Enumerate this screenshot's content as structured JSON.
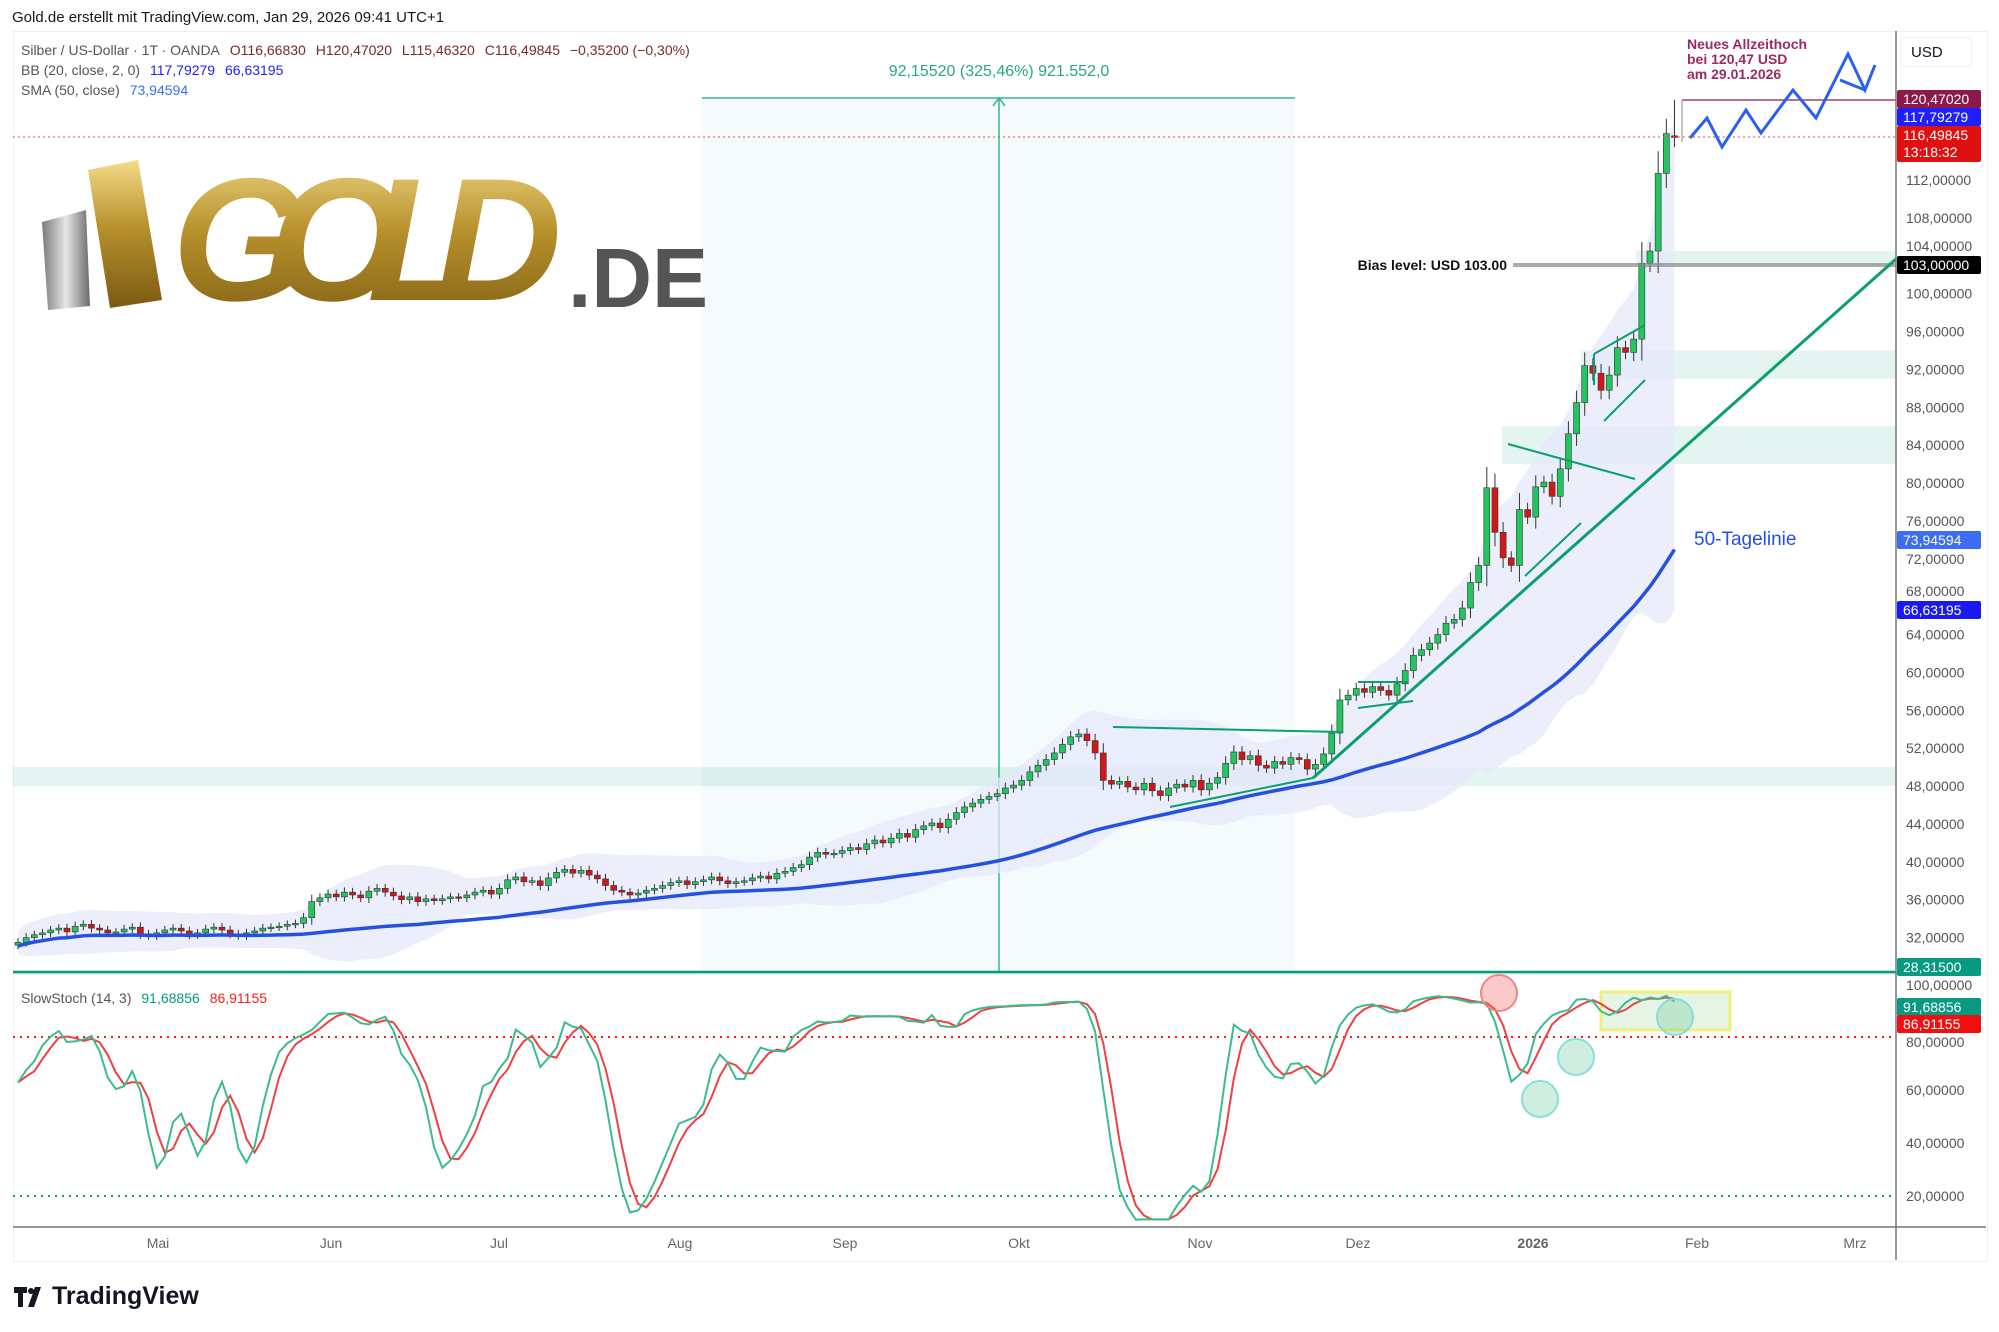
{
  "credit": "Gold.de erstellt mit TradingView.com, Jan 29, 2026 09:41 UTC+1",
  "legend": {
    "symbol": "Silber / US-Dollar · 1T · OANDA",
    "open": "O116,66830",
    "high": "H120,47020",
    "low": "L115,46320",
    "close": "C116,49845",
    "change": "−0,35200 (−0,30%)",
    "bb_label": "BB (20, close, 2, 0)",
    "bb_upper": "117,79279",
    "bb_lower": "66,63195",
    "sma_label": "SMA (50, close)",
    "sma_value": "73,94594",
    "stoch_label": "SlowStoch (14, 3)",
    "stoch_k": "91,68856",
    "stoch_d": "86,91155"
  },
  "currency": "USD",
  "logo": {
    "text": "GOLD",
    "suffix": ".DE"
  },
  "branding": "TradingView",
  "annotations": {
    "measure": "92,15520 (325,46%) 921.552,0",
    "ath_line1": "Neues Allzeithoch",
    "ath_line2": "bei 120,47 USD",
    "ath_line3": "am 29.01.2026",
    "bias": "Bias level: USD 103.00",
    "sma_name": "50-Tagelinie"
  },
  "price_badges": [
    {
      "value": "120,47020",
      "color": "#8b1a4a"
    },
    {
      "value": "117,79279",
      "color": "#1e1eff"
    },
    {
      "value": "116,49845",
      "sub": "13:18:32",
      "color": "#e01010"
    },
    {
      "value": "103,00000",
      "color": "#000000"
    },
    {
      "value": "73,94594",
      "color": "#3d6df2"
    },
    {
      "value": "66,63195",
      "color": "#1a1af0"
    },
    {
      "value": "28,31500",
      "color": "#089981"
    }
  ],
  "stoch_badges": [
    {
      "value": "91,68856",
      "color": "#089981"
    },
    {
      "value": "86,91155",
      "color": "#f01010"
    }
  ],
  "colors": {
    "up": "#22c55e",
    "down": "#d01818",
    "sma": "#2451e0",
    "bb_fill": "#e6e8fb",
    "stoch_k": "#3dbb8f",
    "stoch_d": "#f04040",
    "trend": "#0aa06e"
  },
  "chart_data": {
    "type": "candlestick",
    "title": "Silber / US-Dollar · 1T · OANDA",
    "price_ticks": [
      "112,00000",
      "108,00000",
      "104,00000",
      "100,00000",
      "96,00000",
      "92,00000",
      "88,00000",
      "84,00000",
      "80,00000",
      "76,00000",
      "72,00000",
      "68,00000",
      "64,00000",
      "60,00000",
      "56,00000",
      "52,00000",
      "48,00000",
      "44,00000",
      "40,00000",
      "36,00000",
      "32,00000"
    ],
    "price_tick_values": [
      112,
      108,
      104,
      100,
      96,
      92,
      88,
      84,
      80,
      76,
      72,
      68,
      64,
      60,
      56,
      52,
      48,
      44,
      40,
      36,
      32
    ],
    "stoch_ticks": [
      "100,00000",
      "80,00000",
      "60,00000",
      "40,00000",
      "20,00000"
    ],
    "stoch_tick_values": [
      100,
      80,
      60,
      40,
      20
    ],
    "time_labels": [
      "Mai",
      "Jun",
      "Jul",
      "Aug",
      "Sep",
      "Okt",
      "Nov",
      "Dez",
      "2026",
      "Feb",
      "Mrz"
    ],
    "last_candle": {
      "open": 116.6683,
      "high": 120.4702,
      "low": 115.4632,
      "close": 116.49845
    },
    "levels": {
      "ath": 120.4702,
      "last": 116.49845,
      "bias": 103.0,
      "stoch_upper": 80,
      "stoch_lower": 20,
      "base": 28.315
    },
    "zones": [
      [
        48,
        50
      ],
      [
        91,
        94
      ],
      [
        82,
        86
      ],
      [
        103,
        104.5
      ]
    ],
    "closes": [
      31.5,
      32,
      32.3,
      32.5,
      32.8,
      33,
      32.6,
      33.2,
      33.4,
      33,
      32.8,
      32.5,
      32.6,
      32.9,
      33.1,
      32.4,
      32.2,
      32.5,
      32.8,
      33,
      32.7,
      32.3,
      32.5,
      32.9,
      33.1,
      32.8,
      32.4,
      32.2,
      32.5,
      32.7,
      33,
      33.1,
      33.2,
      33.4,
      33.5,
      34.1,
      35.8,
      36.2,
      36.6,
      36.3,
      36.8,
      36.5,
      36.2,
      36.9,
      37.2,
      36.8,
      36.4,
      36,
      36.3,
      35.8,
      36.1,
      35.9,
      36.1,
      36.3,
      36.2,
      36.5,
      36.8,
      37,
      36.6,
      37.2,
      38.1,
      38.4,
      37.9,
      38,
      37.5,
      38.3,
      38.9,
      39.2,
      38.8,
      39.1,
      38.6,
      38.2,
      37.5,
      37,
      36.8,
      36.5,
      36.7,
      37,
      37.2,
      37.5,
      37.8,
      38,
      37.6,
      37.9,
      38.1,
      38.4,
      38,
      37.7,
      37.9,
      38,
      38.3,
      38.5,
      38.2,
      38.8,
      39,
      39.4,
      39.7,
      40.5,
      41,
      40.8,
      40.9,
      41.2,
      41.5,
      41.3,
      41.9,
      42.3,
      42,
      42.5,
      43,
      42.6,
      43.4,
      43.8,
      44.1,
      43.6,
      44.5,
      45.2,
      45.8,
      46.2,
      46.6,
      46.9,
      47.2,
      47.8,
      48.1,
      48.6,
      49.5,
      50.2,
      50.8,
      51.5,
      52.4,
      53.2,
      53.5,
      52.8,
      51.5,
      48.6,
      48.2,
      48.5,
      47.9,
      47.6,
      48.3,
      47.5,
      47,
      47.8,
      48.2,
      47.9,
      48.6,
      47.6,
      48.3,
      48.9,
      50.4,
      51.6,
      50.8,
      51.2,
      50.2,
      49.9,
      50.6,
      50.3,
      51,
      50.8,
      49.8,
      50.3,
      51.4,
      53.6,
      57.1,
      57.6,
      58.3,
      57.9,
      58.5,
      58.1,
      57.6,
      58.8,
      60.2,
      61.8,
      62.4,
      63.1,
      64,
      65.2,
      65.6,
      66.8,
      69.5,
      71.3,
      79.5,
      74.8,
      72.1,
      71.3,
      77.2,
      76.4,
      79.6,
      80.1,
      78.6,
      81.5,
      85.2,
      88.5,
      92.4,
      91.6,
      89.8,
      91.4,
      94.3,
      93.8,
      95.2,
      103.2,
      104.5,
      112.7,
      116.9,
      116.49845
    ]
  }
}
